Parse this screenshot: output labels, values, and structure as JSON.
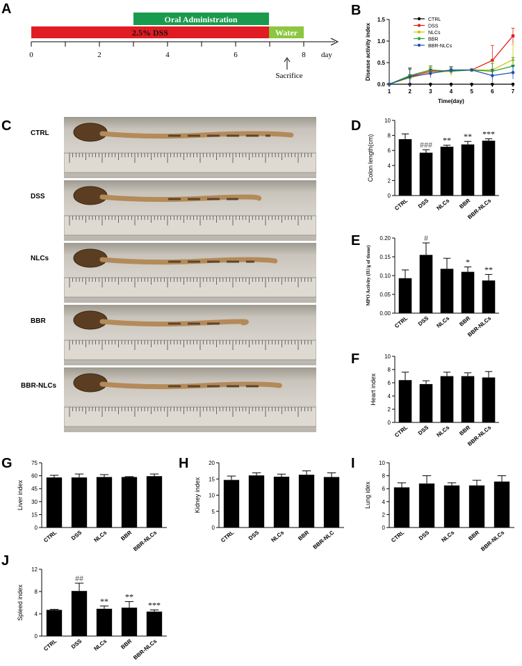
{
  "panels": {
    "a": "A",
    "b": "B",
    "c": "C",
    "d": "D",
    "e": "E",
    "f": "F",
    "g": "G",
    "h": "H",
    "i": "I",
    "j": "J"
  },
  "timeline": {
    "oral_label": "Oral  Administration",
    "dss_label": "2.5% DSS",
    "water_label": "Water",
    "ticks": [
      "0",
      "2",
      "4",
      "6",
      "8"
    ],
    "unit": "day",
    "sacrifice": "Sacrifice",
    "colors": {
      "oral": "#1a9a4d",
      "dss": "#e01b23",
      "water": "#8dc63f"
    }
  },
  "photos": {
    "labels": [
      "CTRL",
      "DSS",
      "NLCs",
      "BBR",
      "BBR-NLCs"
    ],
    "colon_lengths_fraction": [
      0.93,
      0.79,
      0.86,
      0.72,
      0.88
    ]
  },
  "chart_data": [
    {
      "id": "B",
      "type": "line",
      "xlabel": "Time(day)",
      "ylabel": "Disease activity index",
      "x": [
        1,
        2,
        3,
        4,
        5,
        6,
        7
      ],
      "xlim": [
        1,
        7
      ],
      "ylim": [
        0,
        1.5
      ],
      "yticks": [
        "0.0",
        "0.5",
        "1.0",
        "1.5"
      ],
      "legend_position": "top-left",
      "series": [
        {
          "name": "CTRL",
          "color": "#000000",
          "marker": "circle",
          "values": [
            0,
            0,
            0,
            0,
            0,
            0,
            0
          ],
          "errors": [
            0,
            0,
            0,
            0,
            0,
            0,
            0
          ]
        },
        {
          "name": "DSS",
          "color": "#e41a1c",
          "marker": "square",
          "values": [
            0,
            0.18,
            0.3,
            0.32,
            0.33,
            0.55,
            1.12
          ],
          "errors": [
            0,
            0.2,
            0.1,
            0.08,
            0,
            0.35,
            0.18
          ]
        },
        {
          "name": "NLCs",
          "color": "#c8c800",
          "marker": "triangle-up",
          "values": [
            0,
            0.15,
            0.27,
            0.3,
            0.33,
            0.33,
            0.57
          ],
          "errors": [
            0,
            0.18,
            0.12,
            0.1,
            0,
            0.2,
            0.35
          ]
        },
        {
          "name": "BBR",
          "color": "#2ca02c",
          "marker": "triangle-down",
          "values": [
            0,
            0.2,
            0.33,
            0.3,
            0.33,
            0.3,
            0.42
          ],
          "errors": [
            0,
            0.15,
            0.1,
            0.08,
            0,
            0.18,
            0.2
          ]
        },
        {
          "name": "BBR-NLCs",
          "color": "#1f4fb4",
          "marker": "circle",
          "values": [
            0,
            0.17,
            0.25,
            0.33,
            0.33,
            0.2,
            0.27
          ],
          "errors": [
            0,
            0.2,
            0.1,
            0.08,
            0,
            0.15,
            0.15
          ]
        }
      ]
    },
    {
      "id": "D",
      "type": "bar",
      "ylabel": "Colon length(cm)",
      "categories": [
        "CTRL",
        "DSS",
        "NLCs",
        "BBR",
        "BBR-NLCs"
      ],
      "values": [
        7.5,
        5.7,
        6.5,
        6.8,
        7.3
      ],
      "errors": [
        0.7,
        0.4,
        0.2,
        0.4,
        0.25
      ],
      "annotations": [
        "",
        "###",
        "**",
        "**",
        "***"
      ],
      "ylim": [
        0,
        10
      ],
      "yticks": [
        "0",
        "2",
        "4",
        "6",
        "8",
        "10"
      ]
    },
    {
      "id": "E",
      "type": "bar",
      "ylabel": "MPO Activity (IU/g of tissue)",
      "categories": [
        "CTRL",
        "DSS",
        "NLCs",
        "BBR",
        "BBR-NLCs"
      ],
      "values": [
        0.093,
        0.155,
        0.118,
        0.11,
        0.087
      ],
      "errors": [
        0.022,
        0.032,
        0.028,
        0.013,
        0.016
      ],
      "annotations": [
        "",
        "#",
        "",
        "*",
        "**"
      ],
      "ylim": [
        0,
        0.2
      ],
      "yticks": [
        "0.00",
        "0.05",
        "0.10",
        "0.15",
        "0.20"
      ]
    },
    {
      "id": "F",
      "type": "bar",
      "ylabel": "Heart index",
      "categories": [
        "CTRL",
        "DSS",
        "NLCs",
        "BBR",
        "BBR-NLCs"
      ],
      "values": [
        6.4,
        5.8,
        7.0,
        7.0,
        6.8
      ],
      "errors": [
        1.2,
        0.5,
        0.6,
        0.5,
        0.9
      ],
      "annotations": [
        "",
        "",
        "",
        "",
        ""
      ],
      "ylim": [
        0,
        10
      ],
      "yticks": [
        "0",
        "2",
        "4",
        "6",
        "8",
        "10"
      ]
    },
    {
      "id": "G",
      "type": "bar",
      "ylabel": "Liver index",
      "categories": [
        "CTRL",
        "DSS",
        "NLCs",
        "BBR",
        "BBR-NLCs"
      ],
      "values": [
        58,
        58,
        58.5,
        58.5,
        59.5
      ],
      "errors": [
        2.5,
        4,
        2.8,
        0.5,
        2.5
      ],
      "annotations": [
        "",
        "",
        "",
        "",
        ""
      ],
      "ylim": [
        0,
        75
      ],
      "yticks": [
        "0",
        "15",
        "30",
        "45",
        "60",
        "75"
      ]
    },
    {
      "id": "H",
      "type": "bar",
      "ylabel": "Kidney index",
      "categories": [
        "CTRL",
        "DSS",
        "NLCs",
        "BBR",
        "BBR-NLC"
      ],
      "values": [
        14.7,
        16.1,
        15.7,
        16.3,
        15.6
      ],
      "errors": [
        1.2,
        0.8,
        0.8,
        1.2,
        1.3
      ],
      "annotations": [
        "",
        "",
        "",
        "",
        ""
      ],
      "ylim": [
        0,
        20
      ],
      "yticks": [
        "0",
        "5",
        "10",
        "15",
        "20"
      ]
    },
    {
      "id": "I",
      "type": "bar",
      "ylabel": "Lung idex",
      "categories": [
        "CTRL",
        "DSS",
        "NLCs",
        "BBR",
        "BBR-NLCs"
      ],
      "values": [
        6.2,
        6.8,
        6.5,
        6.5,
        7.1
      ],
      "errors": [
        0.7,
        1.2,
        0.4,
        0.8,
        0.9
      ],
      "annotations": [
        "",
        "",
        "",
        "",
        ""
      ],
      "ylim": [
        0,
        10
      ],
      "yticks": [
        "0",
        "2",
        "4",
        "6",
        "8",
        "10"
      ]
    },
    {
      "id": "J",
      "type": "bar",
      "ylabel": "Spleed index",
      "categories": [
        "CTRL",
        "DSS",
        "NLCs",
        "BBR",
        "BBR-NLCs"
      ],
      "values": [
        4.7,
        8.1,
        4.9,
        5.1,
        4.4
      ],
      "errors": [
        0.1,
        1.4,
        0.5,
        1.1,
        0.3
      ],
      "annotations": [
        "",
        "##",
        "**",
        "**",
        "***"
      ],
      "ylim": [
        0,
        12
      ],
      "yticks": [
        "0",
        "4",
        "8",
        "12"
      ]
    }
  ]
}
